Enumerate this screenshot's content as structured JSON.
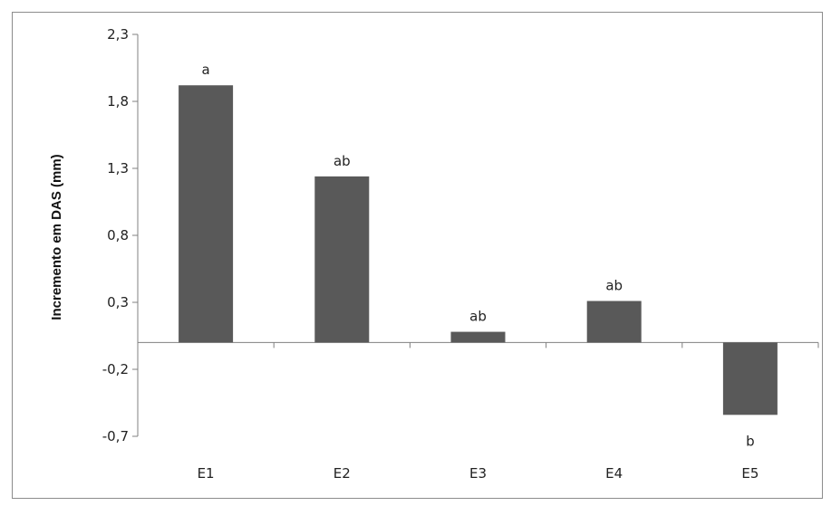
{
  "chart_data": {
    "type": "bar",
    "title": "",
    "xlabel": "",
    "ylabel": "Incremento em DAS (mm)",
    "categories": [
      "E1",
      "E2",
      "E3",
      "E4",
      "E5"
    ],
    "values": [
      1.92,
      1.24,
      0.08,
      0.31,
      -0.54
    ],
    "data_labels": [
      "a",
      "ab",
      "ab",
      "ab",
      "b"
    ],
    "ylim": [
      -0.7,
      2.3
    ],
    "yticks": [
      2.3,
      1.8,
      1.3,
      0.8,
      0.3,
      -0.2,
      -0.7
    ],
    "ytick_labels": [
      "2,3",
      "1,8",
      "1,3",
      "0,8",
      "0,3",
      "-0,2",
      "-0,7"
    ],
    "bar_color": "#595959",
    "grid": false,
    "legend": "none"
  }
}
